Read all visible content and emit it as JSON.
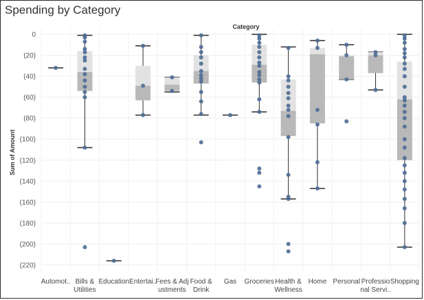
{
  "chart_data": {
    "type": "box",
    "title": "Spending by Category",
    "xlabel": "Category",
    "ylabel": "Sum of Amount",
    "ylim": [
      -225,
      0
    ],
    "yticks": [
      0,
      -20,
      -40,
      -60,
      -80,
      -100,
      -120,
      -140,
      -160,
      -180,
      -200,
      -220
    ],
    "ytick_labels": [
      "0",
      "(20)",
      "(40)",
      "(60)",
      "(80)",
      "(100)",
      "(120)",
      "(140)",
      "(160)",
      "(180)",
      "(200)",
      "(220)"
    ],
    "grid": true,
    "colors": {
      "point": "#4e6d95",
      "box_upper": "#e2e2e2",
      "box_lower": "#b9b9b9",
      "whisker": "#2b2b2b"
    },
    "categories": [
      {
        "label": [
          "Automot.."
        ],
        "points": [
          -32
        ],
        "box": null
      },
      {
        "label": [
          "Bills &",
          "Utilities"
        ],
        "points": [
          -1,
          -3,
          -7,
          -14,
          -17,
          -22,
          -25,
          -33,
          -38,
          -44,
          -50,
          -55,
          -60,
          -108,
          -203
        ],
        "box": {
          "whisker_low": -108,
          "q1": -54,
          "median": -36,
          "q3": -16,
          "whisker_high": -1
        }
      },
      {
        "label": [
          "Education"
        ],
        "points": [
          -216
        ],
        "box": null
      },
      {
        "label": [
          "Entertai.."
        ],
        "points": [
          -11,
          -49,
          -77
        ],
        "box": {
          "whisker_low": -77,
          "q1": -63,
          "median": -49,
          "q3": -30,
          "whisker_high": -11
        }
      },
      {
        "label": [
          "Fees & Adj",
          "ustments"
        ],
        "points": [
          -41,
          -54
        ],
        "box": {
          "whisker_low": -55,
          "q1": -54,
          "median": -48,
          "q3": -41,
          "whisker_high": -41
        }
      },
      {
        "label": [
          "Food &",
          "Drink"
        ],
        "points": [
          -1,
          -12,
          -17,
          -22,
          -28,
          -35,
          -39,
          -42,
          -45,
          -55,
          -64,
          -76,
          -103
        ],
        "box": {
          "whisker_low": -77,
          "q1": -47,
          "median": -35,
          "q3": -20,
          "whisker_high": -1
        }
      },
      {
        "label": [
          "Gas"
        ],
        "points": [
          -77
        ],
        "box": null
      },
      {
        "label": [
          "Groceries"
        ],
        "points": [
          -1,
          -4,
          -8,
          -12,
          -17,
          -22,
          -27,
          -30,
          -36,
          -39,
          -43,
          -46,
          -62,
          -74,
          -128,
          -132,
          -145
        ],
        "box": {
          "whisker_low": -74,
          "q1": -46,
          "median": -29,
          "q3": -10,
          "whisker_high": 0
        }
      },
      {
        "label": [
          "Health &",
          "Wellness"
        ],
        "points": [
          -13,
          -40,
          -44,
          -50,
          -56,
          -61,
          -68,
          -72,
          -78,
          -98,
          -134,
          -155,
          -157,
          -200,
          -207
        ],
        "box": {
          "whisker_low": -157,
          "q1": -97,
          "median": -73,
          "q3": -43,
          "whisker_high": -12
        }
      },
      {
        "label": [
          "Home"
        ],
        "points": [
          -6,
          -13,
          -72,
          -86,
          -122,
          -147
        ],
        "box": {
          "whisker_low": -147,
          "q1": -85,
          "median": -19,
          "q3": -13,
          "whisker_high": -6
        }
      },
      {
        "label": [
          "Personal"
        ],
        "points": [
          -10,
          -20,
          -43,
          -83
        ],
        "box": {
          "whisker_low": -43,
          "q1": -43,
          "median": -21,
          "q3": -20,
          "whisker_high": -10
        }
      },
      {
        "label": [
          "Professio",
          "nal Servi.."
        ],
        "points": [
          -17,
          -20,
          -53
        ],
        "box": {
          "whisker_low": -53,
          "q1": -37,
          "median": -20,
          "q3": -17,
          "whisker_high": -17
        }
      },
      {
        "label": [
          "Shopping"
        ],
        "points": [
          -1,
          -4,
          -8,
          -14,
          -18,
          -22,
          -28,
          -33,
          -40,
          -50,
          -60,
          -63,
          -68,
          -74,
          -80,
          -88,
          -100,
          -108,
          -118,
          -125,
          -132,
          -140,
          -148,
          -157,
          -166,
          -180,
          -203
        ],
        "box": {
          "whisker_low": -203,
          "q1": -120,
          "median": -62,
          "q3": -26,
          "whisker_high": 0
        }
      }
    ]
  }
}
